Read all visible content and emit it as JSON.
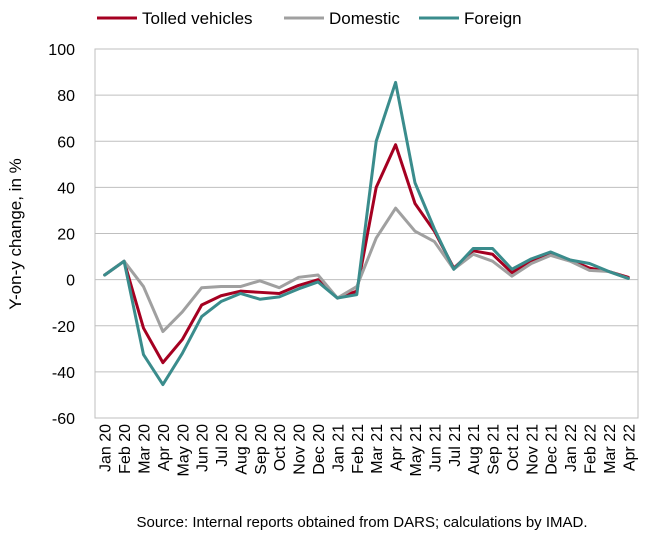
{
  "chart_data": {
    "type": "line",
    "title": "",
    "xlabel": "",
    "ylabel": "Y-on-y change, in %",
    "ylim": [
      -60,
      100
    ],
    "yticks": [
      -60,
      -40,
      -20,
      0,
      20,
      40,
      60,
      80,
      100
    ],
    "grid": true,
    "legend_position": "top",
    "categories": [
      "Jan 20",
      "Feb 20",
      "Mar 20",
      "Apr 20",
      "May 20",
      "Jun 20",
      "Jul 20",
      "Aug 20",
      "Sep 20",
      "Oct 20",
      "Nov 20",
      "Dec 20",
      "Jan 21",
      "Feb 21",
      "Mar 21",
      "Apr 21",
      "May 21",
      "Jun 21",
      "Jul 21",
      "Aug 21",
      "Sep 21",
      "Oct 21",
      "Nov 21",
      "Dec 21",
      "Jan 22",
      "Feb 22",
      "Mar 22",
      "Apr 22"
    ],
    "series": [
      {
        "name": "Tolled vehicles",
        "color": "#A50021",
        "values": [
          2,
          8,
          -21,
          -36,
          -26,
          -11,
          -7,
          -5,
          -5.5,
          -6,
          -2.5,
          0,
          -8,
          -5,
          40,
          58.5,
          33,
          21,
          5,
          12.5,
          11,
          3,
          8,
          11.5,
          8.5,
          5,
          3.5,
          1
        ]
      },
      {
        "name": "Domestic",
        "color": "#A0A0A0",
        "values": [
          2,
          8,
          -3,
          -22.5,
          -14,
          -3.5,
          -3,
          -3,
          -0.5,
          -3.5,
          1,
          2,
          -8,
          -3,
          18,
          31,
          21,
          16.5,
          4.5,
          11,
          8,
          1.5,
          7,
          10.5,
          8,
          4,
          3.5,
          0.5
        ]
      },
      {
        "name": "Foreign",
        "color": "#3A8C8C",
        "values": [
          2,
          8,
          -32.5,
          -45.5,
          -32,
          -16,
          -9.5,
          -6,
          -8.5,
          -7.5,
          -4,
          -1,
          -8,
          -6.5,
          60,
          85.5,
          42,
          22,
          4.5,
          13.5,
          13.5,
          4.5,
          9,
          12,
          8.5,
          7,
          3.5,
          0.5
        ]
      }
    ],
    "source": "Source: Internal reports obtained from DARS; calculations by IMAD."
  }
}
